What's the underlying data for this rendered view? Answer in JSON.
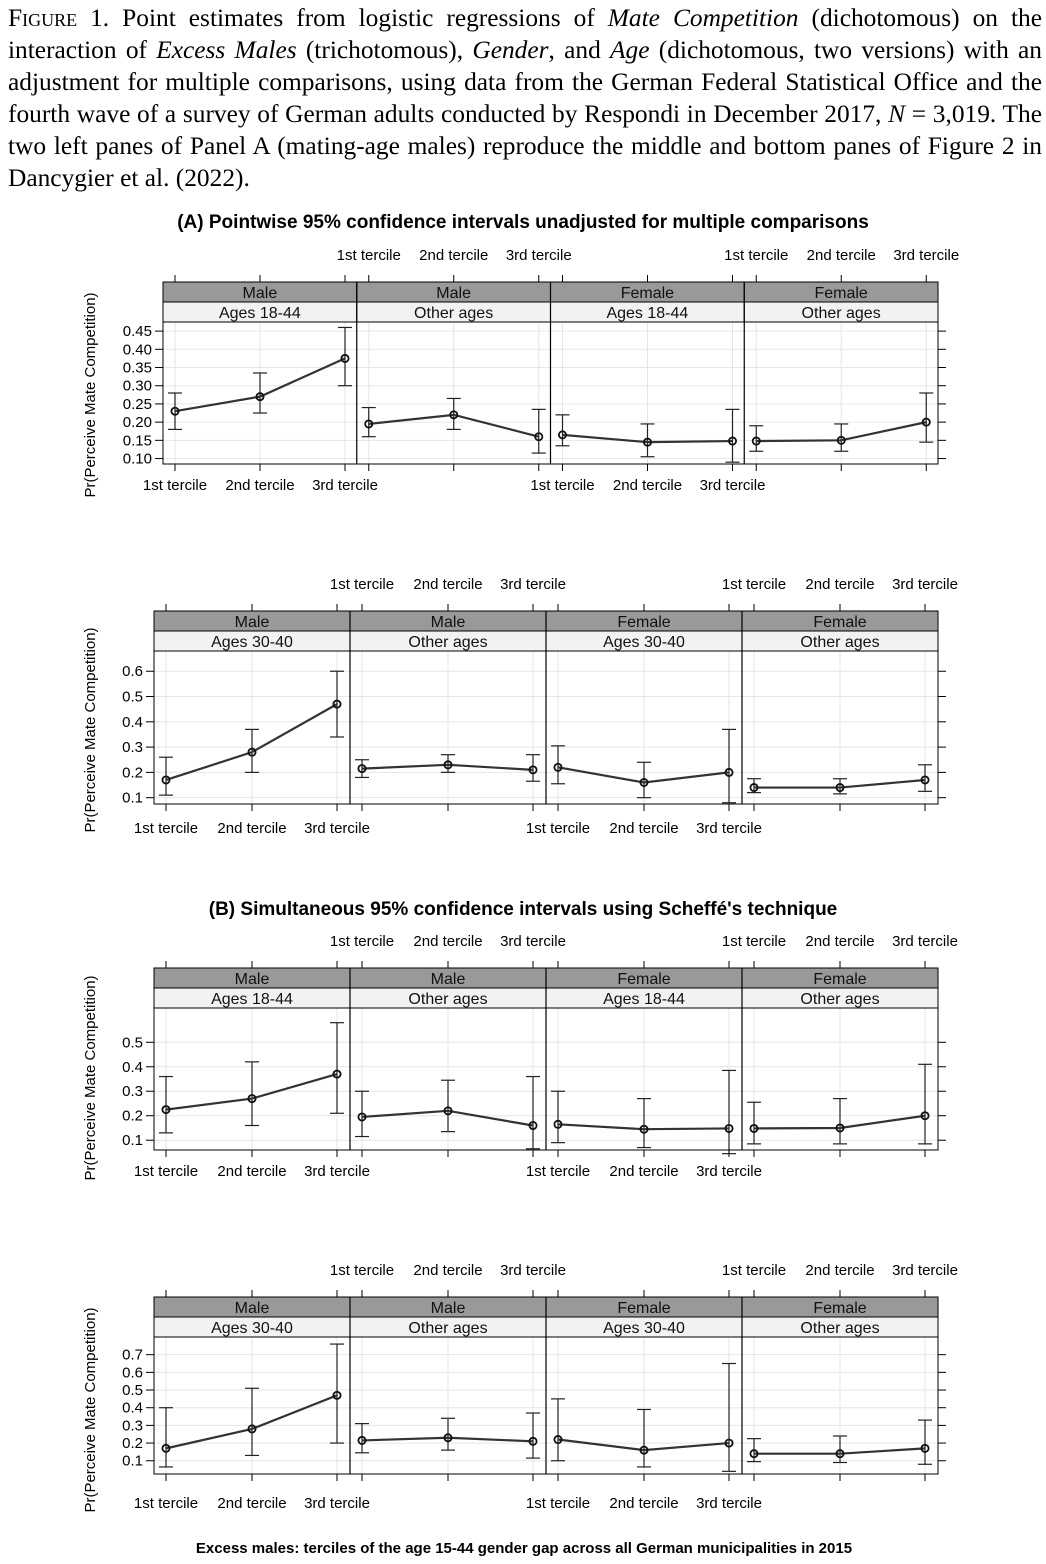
{
  "caption": {
    "label": "Figure 1.",
    "parts": [
      {
        "t": " Point estimates from logistic regressions of ",
        "i": false
      },
      {
        "t": "Mate Competition",
        "i": true
      },
      {
        "t": " (dichotomous) on the interaction of ",
        "i": false
      },
      {
        "t": "Excess Males",
        "i": true
      },
      {
        "t": " (trichotomous), ",
        "i": false
      },
      {
        "t": "Gender",
        "i": true
      },
      {
        "t": ", and ",
        "i": false
      },
      {
        "t": "Age",
        "i": true
      },
      {
        "t": " (dichotomous, two versions) with an adjustment for multiple comparisons, using data from the German Federal Statistical Office and the fourth wave of a survey of German adults conducted by Respondi in December 2017, ",
        "i": false
      },
      {
        "t": "N",
        "i": true
      },
      {
        "t": " = 3,019. The two left panes of Panel A (mating-age males) reproduce the middle and bottom panes of Figure 2 in Dancygier et al. (2022).",
        "i": false
      }
    ]
  },
  "chart_data": {
    "type": "line",
    "section_titles": {
      "A": "(A) Pointwise 95% confidence intervals unadjusted for multiple comparisons",
      "B": "(B) Simultaneous 95% confidence intervals using Scheffé's technique"
    },
    "x_axis_title": "Excess males: terciles of the age 15-44 gender gap across all German municipalities in 2015",
    "categories": [
      "1st tercile",
      "2nd tercile",
      "3rd tercile"
    ],
    "ylabel": "Pr(Perceive Mate Competition)",
    "panels": [
      {
        "section": "A",
        "ylim": [
          0.085,
          0.475
        ],
        "yticks": [
          "0.10",
          "0.15",
          "0.20",
          "0.25",
          "0.30",
          "0.35",
          "0.40",
          "0.45"
        ],
        "facets": [
          {
            "gender": "Male",
            "age": "Ages 18-44",
            "values": [
              0.23,
              0.27,
              0.375
            ],
            "lower": [
              0.18,
              0.225,
              0.3
            ],
            "upper": [
              0.28,
              0.335,
              0.46
            ]
          },
          {
            "gender": "Male",
            "age": "Other ages",
            "values": [
              0.195,
              0.22,
              0.16
            ],
            "lower": [
              0.16,
              0.18,
              0.115
            ],
            "upper": [
              0.24,
              0.265,
              0.235
            ]
          },
          {
            "gender": "Female",
            "age": "Ages 18-44",
            "values": [
              0.165,
              0.145,
              0.148
            ],
            "lower": [
              0.135,
              0.105,
              0.09
            ],
            "upper": [
              0.22,
              0.195,
              0.235
            ]
          },
          {
            "gender": "Female",
            "age": "Other ages",
            "values": [
              0.148,
              0.15,
              0.2
            ],
            "lower": [
              0.12,
              0.12,
              0.145
            ],
            "upper": [
              0.19,
              0.195,
              0.28
            ]
          }
        ]
      },
      {
        "section": "A",
        "ylim": [
          0.075,
          0.68
        ],
        "yticks": [
          "0.1",
          "0.2",
          "0.3",
          "0.4",
          "0.5",
          "0.6"
        ],
        "facets": [
          {
            "gender": "Male",
            "age": "Ages 30-40",
            "values": [
              0.17,
              0.28,
              0.47
            ],
            "lower": [
              0.11,
              0.2,
              0.34
            ],
            "upper": [
              0.26,
              0.37,
              0.6
            ]
          },
          {
            "gender": "Male",
            "age": "Other ages",
            "values": [
              0.215,
              0.23,
              0.21
            ],
            "lower": [
              0.18,
              0.2,
              0.165
            ],
            "upper": [
              0.25,
              0.27,
              0.27
            ]
          },
          {
            "gender": "Female",
            "age": "Ages 30-40",
            "values": [
              0.22,
              0.16,
              0.2
            ],
            "lower": [
              0.155,
              0.1,
              0.08
            ],
            "upper": [
              0.305,
              0.24,
              0.37
            ]
          },
          {
            "gender": "Female",
            "age": "Other ages",
            "values": [
              0.14,
              0.14,
              0.17
            ],
            "lower": [
              0.12,
              0.115,
              0.125
            ],
            "upper": [
              0.175,
              0.175,
              0.23
            ]
          }
        ]
      },
      {
        "section": "B",
        "ylim": [
          0.06,
          0.64
        ],
        "yticks": [
          "0.1",
          "0.2",
          "0.3",
          "0.4",
          "0.5"
        ],
        "facets": [
          {
            "gender": "Male",
            "age": "Ages 18-44",
            "values": [
              0.225,
              0.27,
              0.37
            ],
            "lower": [
              0.13,
              0.16,
              0.21
            ],
            "upper": [
              0.36,
              0.42,
              0.58
            ]
          },
          {
            "gender": "Male",
            "age": "Other ages",
            "values": [
              0.195,
              0.22,
              0.16
            ],
            "lower": [
              0.115,
              0.135,
              0.065
            ],
            "upper": [
              0.3,
              0.345,
              0.36
            ]
          },
          {
            "gender": "Female",
            "age": "Ages 18-44",
            "values": [
              0.165,
              0.145,
              0.148
            ],
            "lower": [
              0.09,
              0.07,
              0.045
            ],
            "upper": [
              0.3,
              0.27,
              0.385
            ]
          },
          {
            "gender": "Female",
            "age": "Other ages",
            "values": [
              0.148,
              0.15,
              0.2
            ],
            "lower": [
              0.085,
              0.085,
              0.085
            ],
            "upper": [
              0.255,
              0.27,
              0.41
            ]
          }
        ]
      },
      {
        "section": "B",
        "ylim": [
          0.025,
          0.8
        ],
        "yticks": [
          "0.1",
          "0.2",
          "0.3",
          "0.4",
          "0.5",
          "0.6",
          "0.7"
        ],
        "facets": [
          {
            "gender": "Male",
            "age": "Ages 30-40",
            "values": [
              0.17,
              0.28,
              0.47
            ],
            "lower": [
              0.065,
              0.13,
              0.2
            ],
            "upper": [
              0.4,
              0.51,
              0.76
            ]
          },
          {
            "gender": "Male",
            "age": "Other ages",
            "values": [
              0.215,
              0.23,
              0.21
            ],
            "lower": [
              0.145,
              0.16,
              0.115
            ],
            "upper": [
              0.31,
              0.34,
              0.37
            ]
          },
          {
            "gender": "Female",
            "age": "Ages 30-40",
            "values": [
              0.22,
              0.16,
              0.2
            ],
            "lower": [
              0.1,
              0.065,
              0.04
            ],
            "upper": [
              0.45,
              0.39,
              0.65
            ]
          },
          {
            "gender": "Female",
            "age": "Other ages",
            "values": [
              0.14,
              0.14,
              0.17
            ],
            "lower": [
              0.095,
              0.09,
              0.08
            ],
            "upper": [
              0.225,
              0.24,
              0.33
            ]
          }
        ]
      }
    ]
  }
}
